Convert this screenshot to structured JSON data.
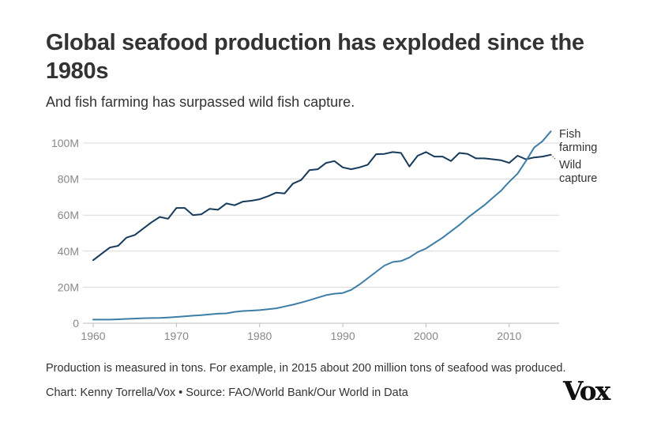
{
  "header": {
    "title": "Global seafood production has exploded since the 1980s",
    "subtitle": "And fish farming has surpassed wild fish capture."
  },
  "footer": {
    "note": "Production is measured in tons. For example, in 2015 about 200 million tons of seafood was produced.",
    "credit": "Chart: Kenny Torrella/Vox • Source: FAO/World Bank/Our World in Data",
    "logo": "Vox"
  },
  "colors": {
    "wild": "#163a5c",
    "farm": "#3d7ea6",
    "grid": "#d9d9d9",
    "tick": "#888888"
  },
  "chart_data": {
    "type": "line",
    "title": "Global seafood production has exploded since the 1980s",
    "xlabel": "",
    "ylabel": "",
    "xlim": [
      1960,
      2016
    ],
    "ylim": [
      0,
      100000000
    ],
    "x_ticks": [
      1960,
      1970,
      1980,
      1990,
      2000,
      2010
    ],
    "y_ticks": [
      0,
      20000000,
      40000000,
      60000000,
      80000000,
      100000000
    ],
    "y_tick_labels": [
      "0",
      "20M",
      "40M",
      "60M",
      "80M",
      "100M"
    ],
    "grid": true,
    "x": [
      1960,
      1961,
      1962,
      1963,
      1964,
      1965,
      1966,
      1967,
      1968,
      1969,
      1970,
      1971,
      1972,
      1973,
      1974,
      1975,
      1976,
      1977,
      1978,
      1979,
      1980,
      1981,
      1982,
      1983,
      1984,
      1985,
      1986,
      1987,
      1988,
      1989,
      1990,
      1991,
      1992,
      1993,
      1994,
      1995,
      1996,
      1997,
      1998,
      1999,
      2000,
      2001,
      2002,
      2003,
      2004,
      2005,
      2006,
      2007,
      2008,
      2009,
      2010,
      2011,
      2012,
      2013,
      2014,
      2015
    ],
    "series": [
      {
        "name": "Wild capture",
        "label_lines": [
          "Wild",
          "capture"
        ],
        "values": [
          35000000,
          38500000,
          42000000,
          43000000,
          47500000,
          49000000,
          52500000,
          56000000,
          59000000,
          58000000,
          64000000,
          64000000,
          60000000,
          60500000,
          63500000,
          63000000,
          66500000,
          65500000,
          67500000,
          68000000,
          68800000,
          70500000,
          72500000,
          72000000,
          77500000,
          79500000,
          85000000,
          85500000,
          89000000,
          90000000,
          86500000,
          85500000,
          86500000,
          88000000,
          93800000,
          94000000,
          95000000,
          94500000,
          87000000,
          93000000,
          95000000,
          92500000,
          92500000,
          90000000,
          94500000,
          94000000,
          91500000,
          91500000,
          91000000,
          90500000,
          89000000,
          93000000,
          91000000,
          92000000,
          92500000,
          93500000
        ]
      },
      {
        "name": "Fish farming",
        "label_lines": [
          "Fish",
          "farming"
        ],
        "values": [
          2000000,
          2000000,
          2000000,
          2200000,
          2400000,
          2600000,
          2800000,
          2900000,
          3000000,
          3200000,
          3500000,
          3800000,
          4200000,
          4500000,
          4900000,
          5300000,
          5500000,
          6300000,
          6800000,
          7000000,
          7300000,
          7800000,
          8300000,
          9300000,
          10300000,
          11500000,
          12800000,
          14200000,
          15600000,
          16400000,
          16800000,
          18500000,
          21500000,
          25000000,
          28500000,
          32000000,
          34000000,
          34500000,
          36500000,
          39500000,
          41500000,
          44500000,
          47500000,
          51000000,
          54500000,
          58500000,
          62000000,
          65500000,
          69500000,
          73500000,
          78500000,
          83000000,
          90000000,
          97500000,
          101000000,
          106500000
        ]
      }
    ]
  }
}
